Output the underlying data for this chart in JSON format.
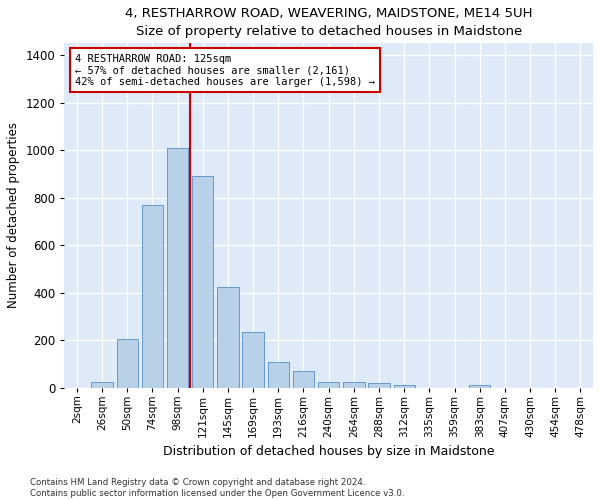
{
  "title": "4, RESTHARROW ROAD, WEAVERING, MAIDSTONE, ME14 5UH",
  "subtitle": "Size of property relative to detached houses in Maidstone",
  "xlabel": "Distribution of detached houses by size in Maidstone",
  "ylabel": "Number of detached properties",
  "categories": [
    "2sqm",
    "26sqm",
    "50sqm",
    "74sqm",
    "98sqm",
    "121sqm",
    "145sqm",
    "169sqm",
    "193sqm",
    "216sqm",
    "240sqm",
    "264sqm",
    "288sqm",
    "312sqm",
    "335sqm",
    "359sqm",
    "383sqm",
    "407sqm",
    "430sqm",
    "454sqm",
    "478sqm"
  ],
  "values": [
    0,
    25,
    205,
    770,
    1010,
    890,
    425,
    235,
    108,
    70,
    25,
    25,
    20,
    10,
    0,
    0,
    12,
    0,
    0,
    0,
    0
  ],
  "bar_color": "#b8d0e8",
  "bar_edge_color": "#6699cc",
  "highlight_color": "#cc0000",
  "annotation_line1": "4 RESTHARROW ROAD: 125sqm",
  "annotation_line2": "← 57% of detached houses are smaller (2,161)",
  "annotation_line3": "42% of semi-detached houses are larger (1,598) →",
  "annotation_box_color": "white",
  "annotation_border_color": "#cc0000",
  "bg_color": "#deeaf7",
  "grid_color": "white",
  "ylim": [
    0,
    1450
  ],
  "yticks": [
    0,
    200,
    400,
    600,
    800,
    1000,
    1200,
    1400
  ],
  "red_line_index": 5,
  "footer1": "Contains HM Land Registry data © Crown copyright and database right 2024.",
  "footer2": "Contains public sector information licensed under the Open Government Licence v3.0."
}
